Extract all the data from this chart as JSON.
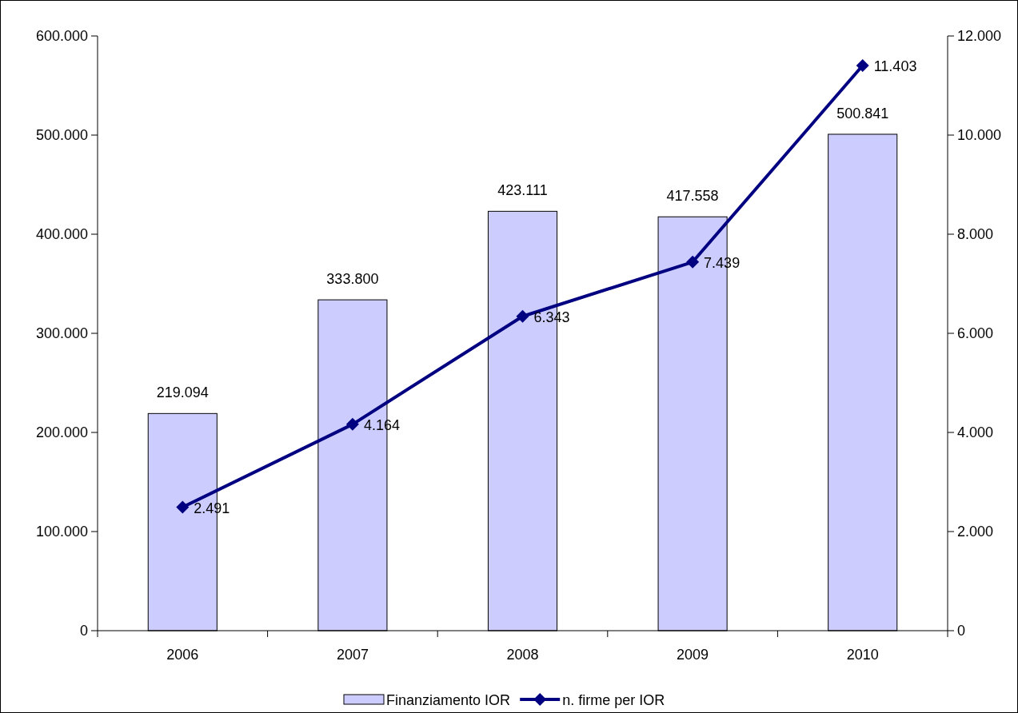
{
  "chart_data": {
    "type": "bar",
    "categories": [
      "2006",
      "2007",
      "2008",
      "2009",
      "2010"
    ],
    "series": [
      {
        "name": "Finanziamento IOR",
        "color": "#ccccff",
        "values": [
          219094,
          333800,
          423111,
          417558,
          500841
        ],
        "value_labels": [
          "219.094",
          "333.800",
          "423.111",
          "417.558",
          "500.841"
        ]
      },
      {
        "name": "n. firme per IOR",
        "type": "line",
        "axis": "y2",
        "color": "#000080",
        "values": [
          2491,
          4164,
          6343,
          7439,
          11403
        ],
        "value_labels": [
          "2.491",
          "4.164",
          "6.343",
          "7.439",
          "11.403"
        ]
      }
    ],
    "ylim": [
      0,
      600000
    ],
    "yticks": [
      {
        "value": 0,
        "label": "0"
      },
      {
        "value": 100000,
        "label": "100.000"
      },
      {
        "value": 200000,
        "label": "200.000"
      },
      {
        "value": 300000,
        "label": "300.000"
      },
      {
        "value": 400000,
        "label": "400.000"
      },
      {
        "value": 500000,
        "label": "500.000"
      },
      {
        "value": 600000,
        "label": "600.000"
      }
    ],
    "y2lim": [
      0,
      12000
    ],
    "y2ticks": [
      {
        "value": 0,
        "label": "0"
      },
      {
        "value": 2000,
        "label": "2.000"
      },
      {
        "value": 4000,
        "label": "4.000"
      },
      {
        "value": 6000,
        "label": "6.000"
      },
      {
        "value": 8000,
        "label": "8.000"
      },
      {
        "value": 10000,
        "label": "10.000"
      },
      {
        "value": 12000,
        "label": "12.000"
      }
    ],
    "legend": "bottom",
    "marker": "diamond"
  }
}
